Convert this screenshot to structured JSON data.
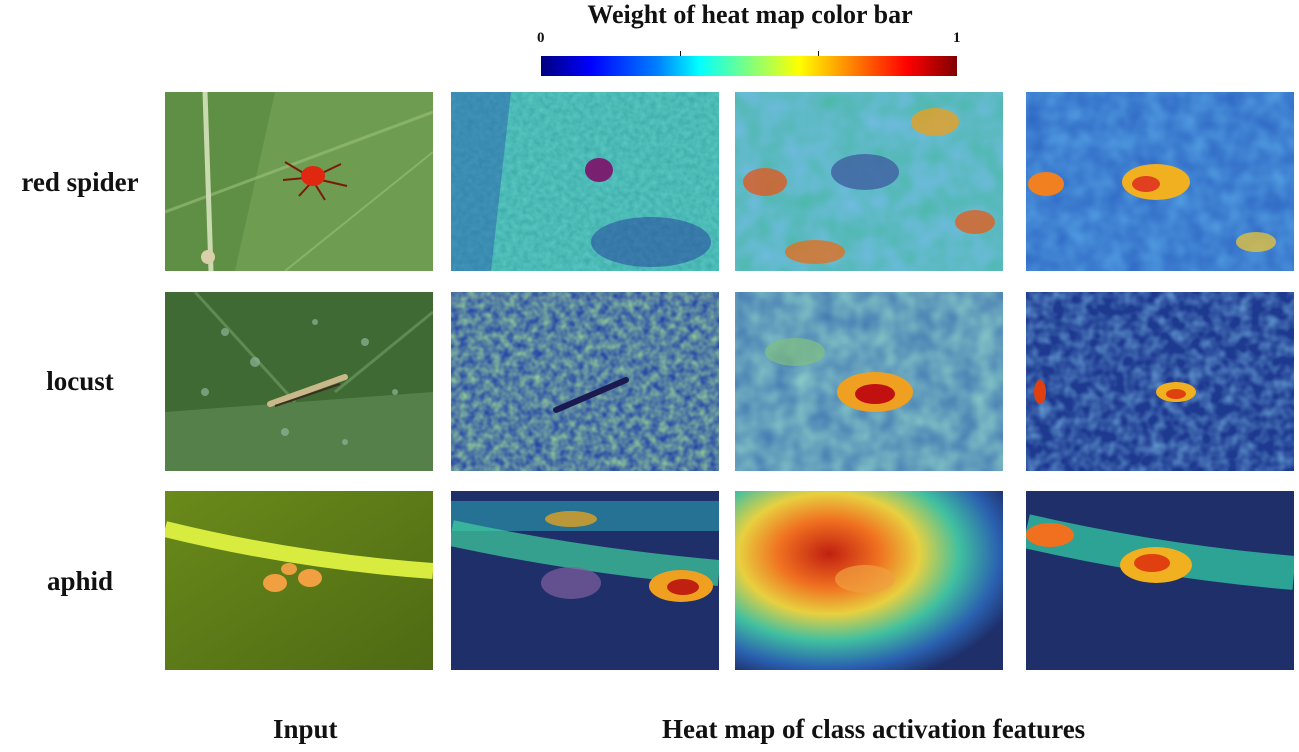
{
  "colorbar": {
    "title": "Weight of heat map color bar",
    "min_label": "0",
    "max_label": "1"
  },
  "rows": [
    {
      "label": "red spider"
    },
    {
      "label": "locust"
    },
    {
      "label": "aphid"
    }
  ],
  "footer": {
    "input_label": "Input",
    "heatmap_label": "Heat map of class activation features"
  }
}
